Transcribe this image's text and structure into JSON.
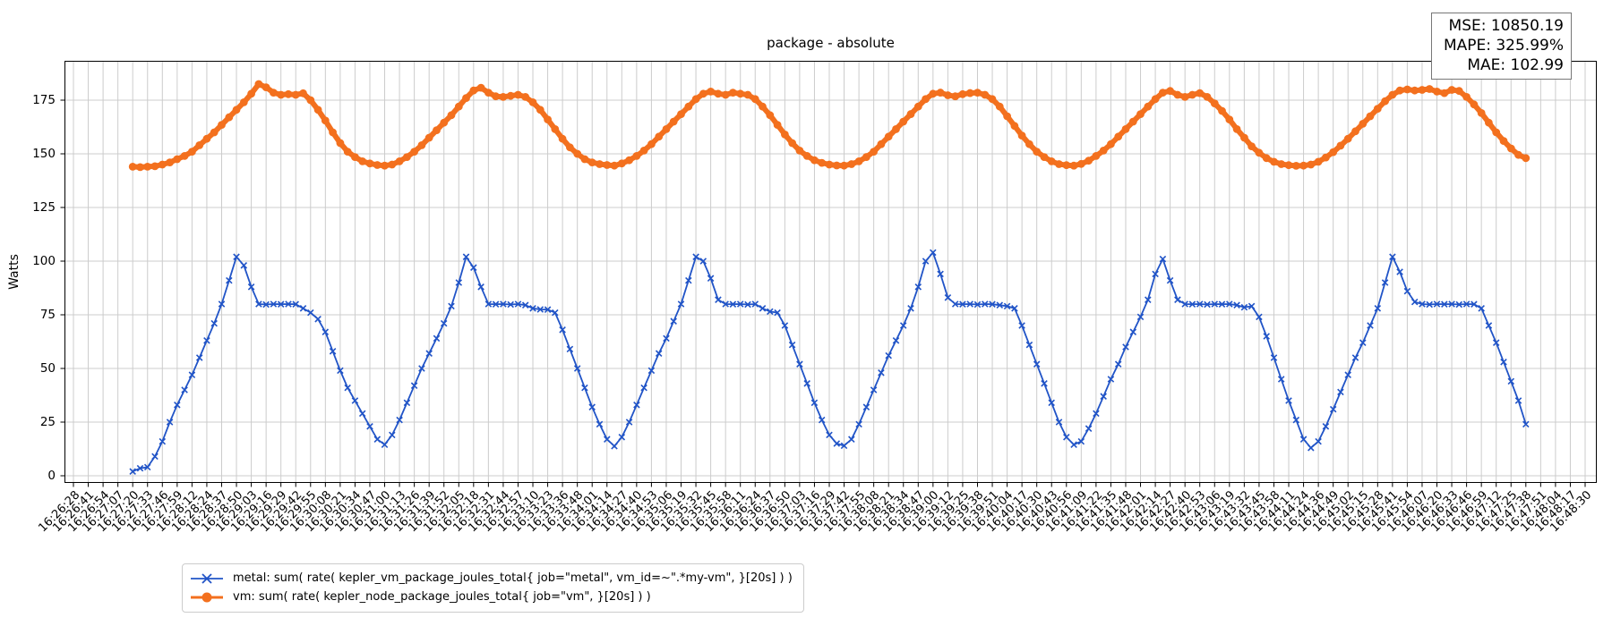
{
  "figure_title": "package - absolute",
  "chart_data": {
    "type": "line",
    "title": "package - absolute",
    "xlabel": "",
    "ylabel": "Watts",
    "ylim": [
      -3.3,
      193.3
    ],
    "grid": true,
    "legend_position": "below-axis-lower-left",
    "yticks": [
      0,
      25,
      50,
      75,
      100,
      125,
      150,
      175
    ],
    "xticklabels": [
      "16:26:28",
      "16:26:41",
      "16:26:54",
      "16:27:07",
      "16:27:20",
      "16:27:33",
      "16:27:46",
      "16:27:59",
      "16:28:12",
      "16:28:24",
      "16:28:37",
      "16:28:50",
      "16:29:03",
      "16:29:16",
      "16:29:29",
      "16:29:42",
      "16:29:55",
      "16:30:08",
      "16:30:21",
      "16:30:34",
      "16:30:47",
      "16:31:00",
      "16:31:13",
      "16:31:26",
      "16:31:39",
      "16:31:52",
      "16:32:05",
      "16:32:18",
      "16:32:31",
      "16:32:44",
      "16:32:57",
      "16:33:10",
      "16:33:23",
      "16:33:36",
      "16:33:48",
      "16:34:01",
      "16:34:14",
      "16:34:27",
      "16:34:40",
      "16:34:53",
      "16:35:06",
      "16:35:19",
      "16:35:32",
      "16:35:45",
      "16:35:58",
      "16:36:11",
      "16:36:24",
      "16:36:37",
      "16:36:50",
      "16:37:03",
      "16:37:16",
      "16:37:29",
      "16:37:42",
      "16:37:55",
      "16:38:08",
      "16:38:21",
      "16:38:34",
      "16:38:47",
      "16:39:00",
      "16:39:12",
      "16:39:25",
      "16:39:38",
      "16:39:51",
      "16:40:04",
      "16:40:17",
      "16:40:30",
      "16:40:43",
      "16:40:56",
      "16:41:09",
      "16:41:22",
      "16:41:35",
      "16:41:48",
      "16:42:01",
      "16:42:14",
      "16:42:27",
      "16:42:40",
      "16:42:53",
      "16:43:06",
      "16:43:19",
      "16:43:32",
      "16:43:45",
      "16:43:58",
      "16:44:11",
      "16:44:24",
      "16:44:36",
      "16:44:49",
      "16:45:02",
      "16:45:15",
      "16:45:28",
      "16:45:41",
      "16:45:54",
      "16:46:07",
      "16:46:20",
      "16:46:33",
      "16:46:46",
      "16:46:59",
      "16:47:12",
      "16:47:25",
      "16:47:38",
      "16:47:51",
      "16:48:04",
      "16:48:17",
      "16:48:30"
    ],
    "x_axis_note": "series x positions are fractional tick indices; t0 = index of first sample, dt = index step per sample",
    "stats": {
      "mse": "MSE: 10850.19",
      "mape": "MAPE: 325.99%",
      "mae": "MAE: 102.99"
    },
    "series": [
      {
        "name": "metal",
        "legend_label": "metal: sum( rate( kepler_vm_package_joules_total{ job=\"metal\", vm_id=~\".*my-vm\", }[20s] ) )",
        "color": "#2154c7",
        "marker": "x",
        "line_width": 1.8,
        "t0": 4.0,
        "dt": 0.5,
        "values": [
          2,
          3.5,
          4,
          9,
          16,
          25,
          33,
          40,
          47,
          55,
          63,
          71,
          80,
          91,
          102,
          98,
          88,
          80,
          79.8,
          80,
          79.9,
          80,
          79.9,
          78,
          76,
          73,
          67,
          58,
          49,
          41,
          35,
          29,
          23,
          17,
          14.5,
          19,
          26,
          34,
          42,
          50,
          57,
          64,
          71,
          79,
          90,
          102,
          97,
          88,
          80,
          79.9,
          80,
          79.8,
          80,
          79.5,
          78,
          77.5,
          77.4,
          76,
          68,
          59,
          50,
          41,
          32,
          24,
          17,
          13.8,
          18,
          25,
          33,
          41,
          49,
          57,
          64,
          72,
          80,
          91,
          102,
          100,
          92,
          82,
          80,
          79.9,
          80,
          79.8,
          80,
          78,
          76.5,
          76,
          70,
          61,
          52,
          43,
          34,
          26,
          19,
          15,
          14,
          17,
          24,
          32,
          40,
          48,
          56,
          63,
          70,
          78,
          88,
          100,
          104,
          94,
          83,
          80,
          79.9,
          80,
          79.8,
          80,
          79.9,
          79.5,
          79,
          78,
          70,
          61,
          52,
          43,
          34,
          25,
          18,
          14.5,
          16,
          22,
          29,
          37,
          45,
          52,
          60,
          67,
          74,
          82,
          94,
          101,
          91,
          82,
          80,
          79.9,
          80,
          79.8,
          80,
          79.9,
          80,
          79.5,
          78.5,
          79,
          74,
          65,
          55,
          45,
          35,
          26,
          17,
          13,
          16,
          23,
          31,
          39,
          47,
          55,
          62,
          70,
          78,
          90,
          102,
          95,
          86,
          81,
          80,
          79.8,
          80,
          79.9,
          80,
          79.8,
          80,
          79.9,
          78,
          70,
          62,
          53,
          44,
          35,
          24
        ]
      },
      {
        "name": "vm",
        "legend_label": "vm: sum( rate( kepler_node_package_joules_total{ job=\"vm\", }[20s] ) )",
        "color": "#f3701e",
        "marker": "circle",
        "line_width": 6,
        "t0": 4.0,
        "dt": 0.5,
        "values": [
          144,
          143.8,
          144,
          144.2,
          145,
          146,
          147.5,
          149,
          151,
          154,
          157,
          160,
          163.5,
          167,
          170.5,
          174,
          178,
          182.5,
          181,
          178.5,
          177.5,
          177.8,
          177.5,
          178.2,
          175,
          170.5,
          165.5,
          160,
          155,
          151,
          148.5,
          146.5,
          145.5,
          144.8,
          144.5,
          145,
          146.5,
          148.5,
          151,
          154,
          157.5,
          161,
          164.5,
          168,
          172,
          176,
          179.5,
          180.8,
          178.5,
          176.8,
          176.5,
          177,
          177.5,
          176.5,
          174,
          170.5,
          166,
          161.5,
          157,
          153,
          150,
          147.5,
          146,
          145.2,
          144.8,
          144.5,
          145.5,
          147,
          149,
          151.5,
          154.5,
          158,
          161.5,
          165,
          168.5,
          172,
          175.5,
          178,
          179,
          178,
          177.5,
          178.5,
          178,
          177.5,
          175.5,
          172,
          168,
          163.5,
          159,
          155,
          151.5,
          149,
          147,
          145.8,
          145,
          144.6,
          144.5,
          145.2,
          146.5,
          148.5,
          151,
          154.5,
          158,
          161.5,
          165,
          168.5,
          172,
          175.5,
          178,
          178.5,
          177.3,
          176.8,
          177.8,
          178.3,
          178.5,
          177.5,
          175.5,
          172,
          167.5,
          163,
          158.5,
          154.5,
          151,
          148.5,
          146.5,
          145.2,
          144.7,
          144.5,
          145.3,
          146.8,
          149,
          151.5,
          154.5,
          158,
          161.5,
          165,
          168.5,
          172,
          175.5,
          178.5,
          179.3,
          177.5,
          176.5,
          177.5,
          178.3,
          176.5,
          173.5,
          170,
          166,
          161.5,
          157.5,
          153.5,
          150.5,
          148,
          146.3,
          145.2,
          144.7,
          144.4,
          144.5,
          145,
          146.3,
          148.3,
          150.8,
          153.8,
          157,
          160.5,
          164,
          167.5,
          171,
          174.5,
          177.5,
          179.5,
          180,
          179.5,
          179.8,
          180.2,
          179,
          178.3,
          179.8,
          179.3,
          176.5,
          173,
          169,
          164.5,
          160,
          156,
          152.5,
          149.5,
          148
        ]
      }
    ],
    "colors": {
      "grid": "#cccccc",
      "spine": "#000000",
      "metal": "#2154c7",
      "vm": "#f3701e"
    }
  }
}
